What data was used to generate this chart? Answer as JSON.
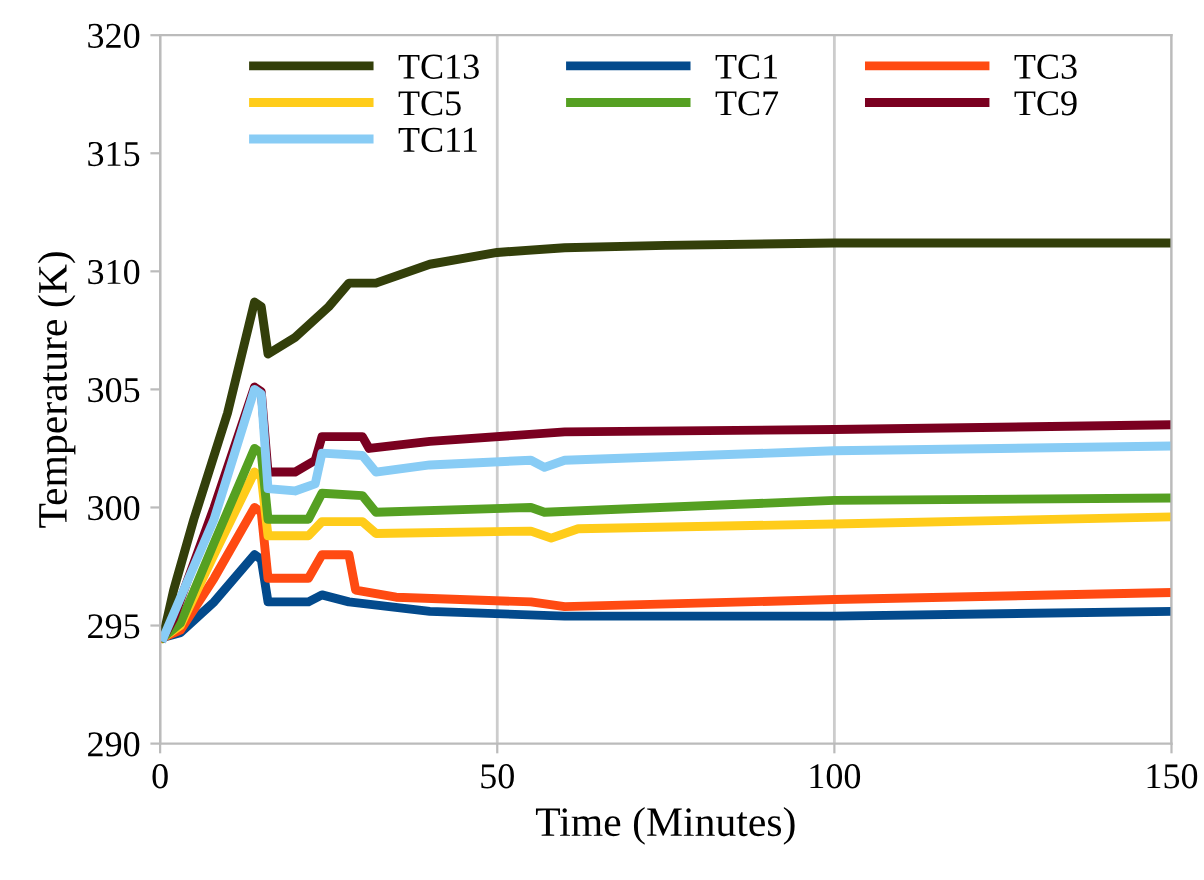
{
  "chart_data": {
    "type": "line",
    "xlabel": "Time (Minutes)",
    "ylabel": "Temperature (K)",
    "xlim": [
      0,
      150
    ],
    "xticks": [
      0,
      50,
      100,
      150
    ],
    "ylim": [
      290,
      320
    ],
    "yticks": [
      290,
      295,
      300,
      305,
      310,
      315,
      320
    ],
    "grid": "x",
    "legend": "top",
    "marker": "none",
    "line_style": "solid",
    "series": [
      {
        "name": "TC13",
        "color": "#333f0a",
        "x": [
          0.5,
          2,
          2.5,
          5,
          10,
          14,
          15,
          16,
          20,
          25,
          28,
          32,
          40,
          50,
          60,
          75,
          100,
          125,
          150
        ],
        "values": [
          294.6,
          296.5,
          297,
          299.5,
          304,
          308.7,
          308.5,
          306.5,
          307.2,
          308.5,
          309.5,
          309.5,
          310.3,
          310.8,
          311,
          311.1,
          311.2,
          311.2,
          311.2
        ]
      },
      {
        "name": "TC1",
        "color": "#034a8c",
        "x": [
          0.5,
          3,
          8,
          14,
          15,
          16,
          22,
          24,
          28,
          40,
          60,
          100,
          150
        ],
        "values": [
          294.5,
          294.7,
          296,
          298,
          297.8,
          296,
          296,
          296.3,
          296,
          295.6,
          295.4,
          295.4,
          295.6
        ]
      },
      {
        "name": "TC3",
        "color": "#ff4a12",
        "x": [
          0.5,
          3,
          8,
          14,
          15,
          16,
          22,
          24,
          28,
          29,
          35,
          55,
          60,
          100,
          150
        ],
        "values": [
          294.5,
          294.8,
          297,
          300,
          299.8,
          297,
          297,
          298,
          298,
          296.5,
          296.2,
          296,
          295.8,
          296.1,
          296.4
        ]
      },
      {
        "name": "TC5",
        "color": "#ffcc1a",
        "x": [
          0.5,
          3,
          8,
          14,
          15,
          16,
          22,
          24,
          30,
          32,
          55,
          58,
          62,
          100,
          150
        ],
        "values": [
          294.5,
          295,
          298,
          301.5,
          301.3,
          298.8,
          298.8,
          299.4,
          299.4,
          298.9,
          299,
          298.7,
          299.1,
          299.3,
          299.6
        ]
      },
      {
        "name": "TC7",
        "color": "#55a022",
        "x": [
          0.5,
          3,
          8,
          14,
          15,
          16,
          22,
          24,
          30,
          32,
          55,
          57,
          100,
          150
        ],
        "values": [
          294.5,
          295.1,
          298.5,
          302.5,
          302.3,
          299.5,
          299.5,
          300.6,
          300.5,
          299.8,
          300,
          299.8,
          300.3,
          300.4
        ]
      },
      {
        "name": "TC9",
        "color": "#7a0020",
        "x": [
          0.5,
          2,
          8,
          14,
          15,
          16,
          20,
          23,
          24,
          30,
          31,
          40,
          60,
          100,
          150
        ],
        "values": [
          294.5,
          295.3,
          300,
          305.1,
          304.9,
          301.5,
          301.5,
          302,
          303,
          303,
          302.5,
          302.8,
          303.2,
          303.3,
          303.5
        ]
      },
      {
        "name": "TC11",
        "color": "#88ccf5",
        "x": [
          0.5,
          2,
          8,
          14,
          15,
          16,
          20,
          23,
          24,
          30,
          32,
          40,
          55,
          57,
          60,
          100,
          150
        ],
        "values": [
          294.5,
          295.5,
          299.5,
          305,
          304.8,
          300.8,
          300.7,
          301,
          302.3,
          302.2,
          301.5,
          301.8,
          302,
          301.7,
          302,
          302.4,
          302.6
        ]
      }
    ]
  }
}
